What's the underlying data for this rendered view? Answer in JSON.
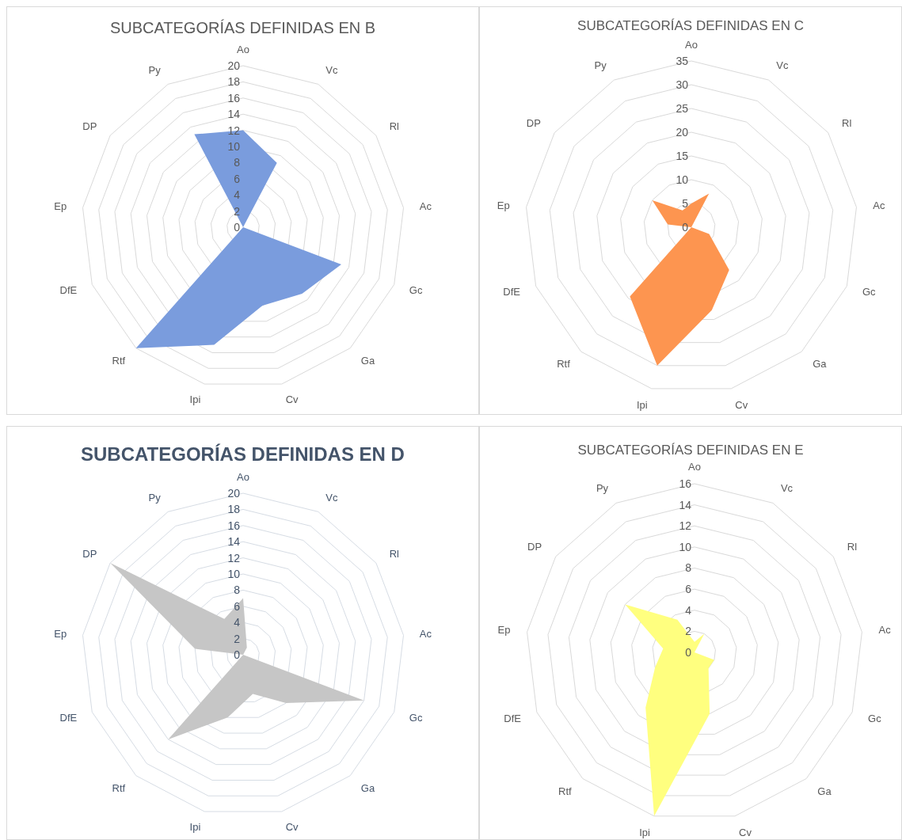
{
  "chart_data": [
    {
      "type": "radar",
      "title": "SUBCATEGORÍAS DEFINIDAS EN B",
      "categories": [
        "Ao",
        "Vc",
        "Rl",
        "Ac",
        "Gc",
        "Ga",
        "Cv",
        "Ipi",
        "Rtf",
        "DfE",
        "Ep",
        "DP",
        "Py"
      ],
      "series": [
        {
          "color": "#7a9cdd",
          "values": [
            12,
            9,
            0,
            0,
            13,
            11,
            10,
            15,
            20,
            0,
            0,
            0,
            13
          ]
        }
      ],
      "ylim": [
        0,
        20
      ],
      "yticks": [
        0,
        2,
        4,
        6,
        8,
        10,
        12,
        14,
        16,
        18,
        20
      ],
      "grid": true
    },
    {
      "type": "radar",
      "title": "SUBCATEGORÍAS DEFINIDAS EN C",
      "categories": [
        "Ao",
        "Vc",
        "Rl",
        "Ac",
        "Gc",
        "Ga",
        "Cv",
        "Ipi",
        "Rtf",
        "DfE",
        "Ep",
        "DP",
        "Py"
      ],
      "series": [
        {
          "color": "#fd9550",
          "values": [
            5,
            8,
            0,
            0,
            4,
            12,
            18,
            30,
            19.5,
            0,
            5,
            10,
            4
          ]
        }
      ],
      "ylim": [
        0,
        35
      ],
      "yticks": [
        0,
        5,
        10,
        15,
        20,
        25,
        30,
        35
      ],
      "grid": true
    },
    {
      "type": "radar",
      "title": "SUBCATEGORÍAS DEFINIDAS EN D",
      "categories": [
        "Ao",
        "Vc",
        "Rl",
        "Ac",
        "Gc",
        "Ga",
        "Cv",
        "Ipi",
        "Rtf",
        "DfE",
        "Ep",
        "DP",
        "Py"
      ],
      "series": [
        {
          "color": "#c6c6c6",
          "values": [
            7,
            1,
            0,
            0,
            16,
            8,
            5,
            8,
            14,
            0,
            6,
            20,
            5
          ]
        }
      ],
      "ylim": [
        0,
        20
      ],
      "yticks": [
        0,
        2,
        4,
        6,
        8,
        10,
        12,
        14,
        16,
        18,
        20
      ],
      "grid": true
    },
    {
      "type": "radar",
      "title": "SUBCATEGORÍAS DEFINIDAS EN E",
      "categories": [
        "Ao",
        "Vc",
        "Rl",
        "Ac",
        "Gc",
        "Ga",
        "Cv",
        "Ipi",
        "Rtf",
        "DfE",
        "Ep",
        "DP",
        "Py"
      ],
      "series": [
        {
          "color": "#ffff7f",
          "values": [
            1,
            2,
            0,
            0,
            2,
            2,
            6,
            16,
            7,
            4,
            3,
            8,
            3.5
          ]
        }
      ],
      "ylim": [
        0,
        16
      ],
      "yticks": [
        0,
        2,
        4,
        6,
        8,
        10,
        12,
        14,
        16
      ],
      "grid": true
    }
  ]
}
